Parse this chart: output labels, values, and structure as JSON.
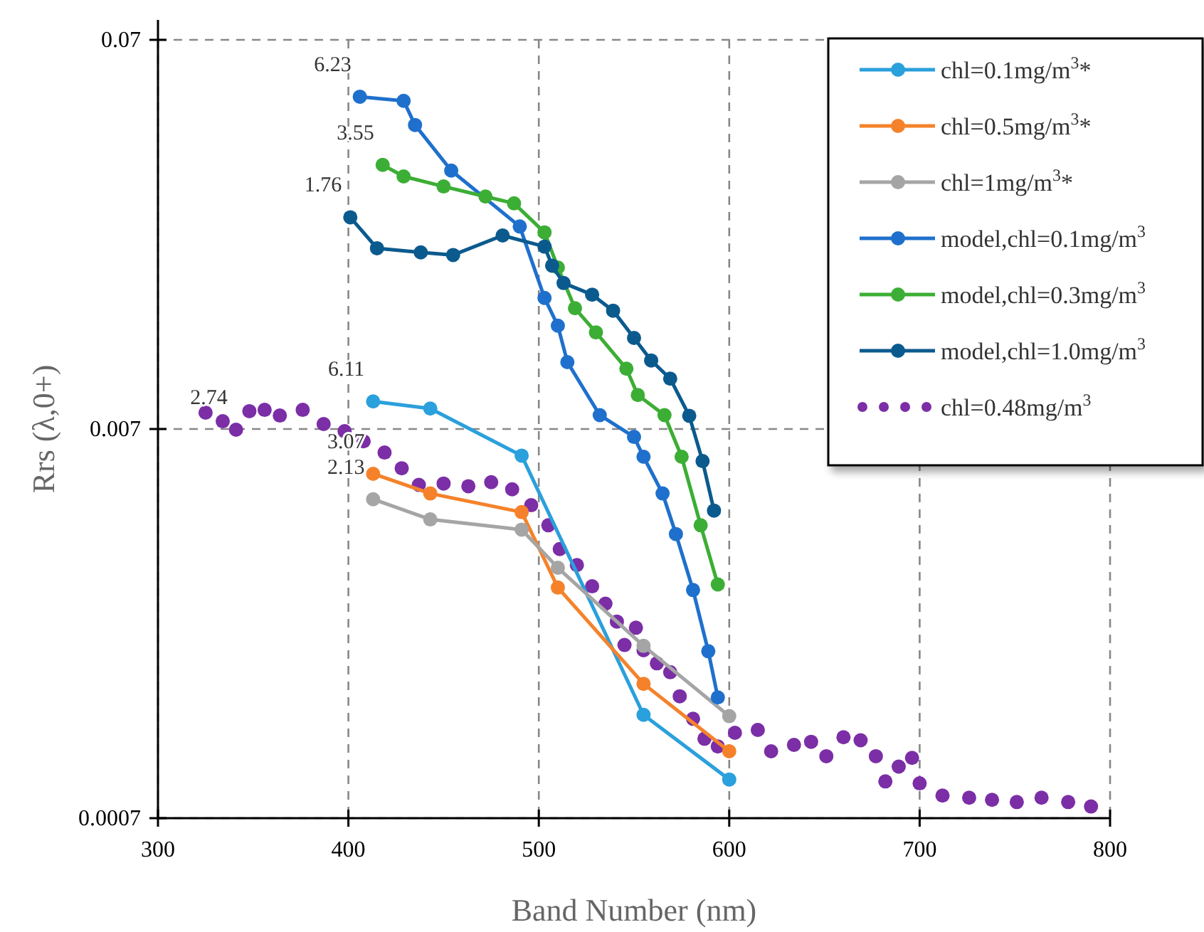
{
  "chart_data": {
    "type": "line",
    "xlabel": "Band Number (nm)",
    "ylabel": "Rrs (λ,0+)",
    "xlim": [
      300,
      800
    ],
    "xticks": [
      300,
      400,
      500,
      600,
      700,
      800
    ],
    "ylim": [
      0.0007,
      0.07
    ],
    "yticks": [
      0.0007,
      0.007,
      0.07
    ],
    "log": "y",
    "grid": true,
    "legend": "top right",
    "marker": "circle",
    "line_style": "solid",
    "series": [
      {
        "name": "chl=0.1mg/m$^{3}$*",
        "color": "#2aa0dc",
        "x": [
          413,
          443,
          491,
          555,
          600
        ],
        "values": [
          0.00824,
          0.0079,
          0.00598,
          0.00129,
          0.00088
        ]
      },
      {
        "name": "chl=0.5mg/m$^{3}$*",
        "color": "#f5822a",
        "x": [
          413,
          443,
          491,
          510,
          555,
          600
        ],
        "values": [
          0.00537,
          0.00478,
          0.00428,
          0.00274,
          0.00155,
          0.00104
        ]
      },
      {
        "name": "chl=1mg/m$^{3}$*",
        "color": "#a5a5a5",
        "x": [
          413,
          443,
          491,
          510,
          555,
          600
        ],
        "values": [
          0.00462,
          0.0041,
          0.00386,
          0.00308,
          0.00194,
          0.00128
        ]
      },
      {
        "name": "model,chl=0.1mg/m$^{3}$",
        "color": "#1f70cc",
        "x": [
          406,
          429,
          435,
          454,
          490,
          503,
          510,
          515,
          532,
          550,
          555,
          565,
          572,
          581,
          589,
          594
        ],
        "values": [
          0.05,
          0.0488,
          0.0423,
          0.0323,
          0.0232,
          0.0152,
          0.0129,
          0.0104,
          0.0076,
          0.00668,
          0.00594,
          0.00478,
          0.00376,
          0.0027,
          0.00188,
          0.00143
        ]
      },
      {
        "name": "model,chl=0.3mg/m$^{3}$",
        "color": "#3cae35",
        "x": [
          418,
          429,
          450,
          472,
          487,
          503,
          510,
          519,
          530,
          546,
          552,
          566,
          575,
          585,
          594
        ],
        "values": [
          0.0334,
          0.0312,
          0.0294,
          0.0277,
          0.0266,
          0.0224,
          0.0182,
          0.0143,
          0.0124,
          0.01,
          0.00856,
          0.0076,
          0.00594,
          0.00396,
          0.00279
        ]
      },
      {
        "name": "model,chl=1.0mg/m$^{3}$",
        "color": "#0b5a8e",
        "x": [
          401,
          415,
          438,
          455,
          481,
          503,
          507,
          513,
          528,
          539,
          550,
          559,
          569,
          579,
          586,
          592
        ],
        "values": [
          0.0245,
          0.0204,
          0.0199,
          0.0196,
          0.022,
          0.0206,
          0.0184,
          0.0166,
          0.0155,
          0.0141,
          0.012,
          0.0105,
          0.00943,
          0.00757,
          0.00579,
          0.00432
        ]
      },
      {
        "name": "chl=0.48mg/m$^{3}$",
        "type": "scatter",
        "color": "#7b2ea6",
        "x": [
          325,
          334,
          341,
          348,
          356,
          364,
          376,
          387,
          398,
          408,
          419,
          428,
          437,
          450,
          463,
          475,
          486,
          496,
          505,
          511,
          520,
          528,
          535,
          541,
          545,
          551,
          555,
          562,
          569,
          574,
          581,
          587,
          594,
          603,
          615,
          622,
          634,
          643,
          651,
          660,
          669,
          677,
          682,
          689,
          696,
          700,
          712,
          726,
          738,
          751,
          764,
          778,
          790
        ],
        "values": [
          0.00771,
          0.00733,
          0.00697,
          0.00778,
          0.00784,
          0.00758,
          0.00784,
          0.00721,
          0.00691,
          0.00651,
          0.00609,
          0.00555,
          0.00503,
          0.00507,
          0.00499,
          0.00511,
          0.0049,
          0.00446,
          0.00396,
          0.00344,
          0.00313,
          0.00276,
          0.00249,
          0.00224,
          0.00195,
          0.00216,
          0.00189,
          0.00175,
          0.00166,
          0.00144,
          0.00126,
          0.00112,
          0.00107,
          0.00116,
          0.00118,
          0.00104,
          0.00108,
          0.0011,
          0.00101,
          0.00113,
          0.00111,
          0.00101,
          0.00087,
          0.00095,
          0.001,
          0.00086,
          0.0008,
          0.00079,
          0.00078,
          0.00077,
          0.00079,
          0.00077,
          0.00075
        ]
      }
    ],
    "annotations": [
      {
        "text": "6.23",
        "x": 406,
        "y": 0.05
      },
      {
        "text": "3.55",
        "x": 418,
        "y": 0.0334
      },
      {
        "text": "1.76",
        "x": 401,
        "y": 0.0245
      },
      {
        "text": "6.11",
        "x": 413,
        "y": 0.00824
      },
      {
        "text": "3.07",
        "x": 413,
        "y": 0.00537
      },
      {
        "text": "2.13",
        "x": 413,
        "y": 0.00462
      },
      {
        "text": "2.74",
        "x": 341,
        "y": 0.00697
      }
    ]
  }
}
